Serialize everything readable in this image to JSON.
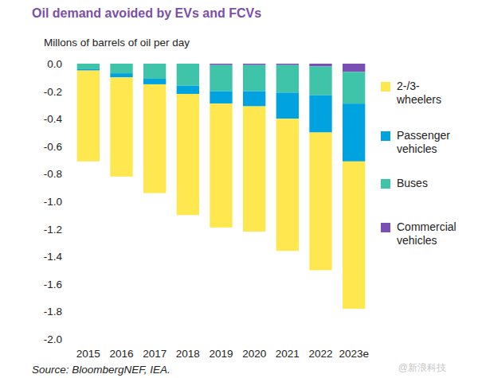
{
  "chart_data": {
    "type": "bar",
    "title": "Oil demand avoided by EVs and FCVs",
    "y_label": "Millons of barrels of oil per day",
    "source": "Source: BloombergNEF, IEA.",
    "annotations": [
      "@新浪科技"
    ],
    "categories": [
      "2015",
      "2016",
      "2017",
      "2018",
      "2019",
      "2020",
      "2021",
      "2022",
      "2023e"
    ],
    "series": [
      {
        "name": "2-/3-wheelers",
        "color": "#ffe84f",
        "values": [
          -0.66,
          -0.72,
          -0.79,
          -0.88,
          -0.9,
          -0.91,
          -0.96,
          -1.0,
          -1.07
        ]
      },
      {
        "name": "Passenger vehicles",
        "color": "#00a3e0",
        "values": [
          -0.01,
          -0.03,
          -0.04,
          -0.06,
          -0.09,
          -0.11,
          -0.19,
          -0.27,
          -0.42
        ]
      },
      {
        "name": "Buses",
        "color": "#3fc4a9",
        "values": [
          -0.04,
          -0.07,
          -0.11,
          -0.16,
          -0.19,
          -0.19,
          -0.2,
          -0.21,
          -0.23
        ]
      },
      {
        "name": "Commercial vehicles",
        "color": "#7a4fb3",
        "values": [
          0,
          0,
          0,
          0,
          -0.01,
          -0.01,
          -0.01,
          -0.02,
          -0.06
        ]
      }
    ],
    "ylim": [
      -2.0,
      0.0
    ],
    "yticks": [
      {
        "value": 0,
        "label": "0.0"
      },
      -0.2,
      -0.4,
      -0.6,
      -0.8,
      {
        "value": -1.0,
        "label": "-1.0"
      },
      -1.2,
      -1.4,
      -1.6,
      -1.8,
      {
        "value": -2.0,
        "label": "-2.0"
      }
    ],
    "stacked": true,
    "grid": false,
    "legend": "right"
  }
}
